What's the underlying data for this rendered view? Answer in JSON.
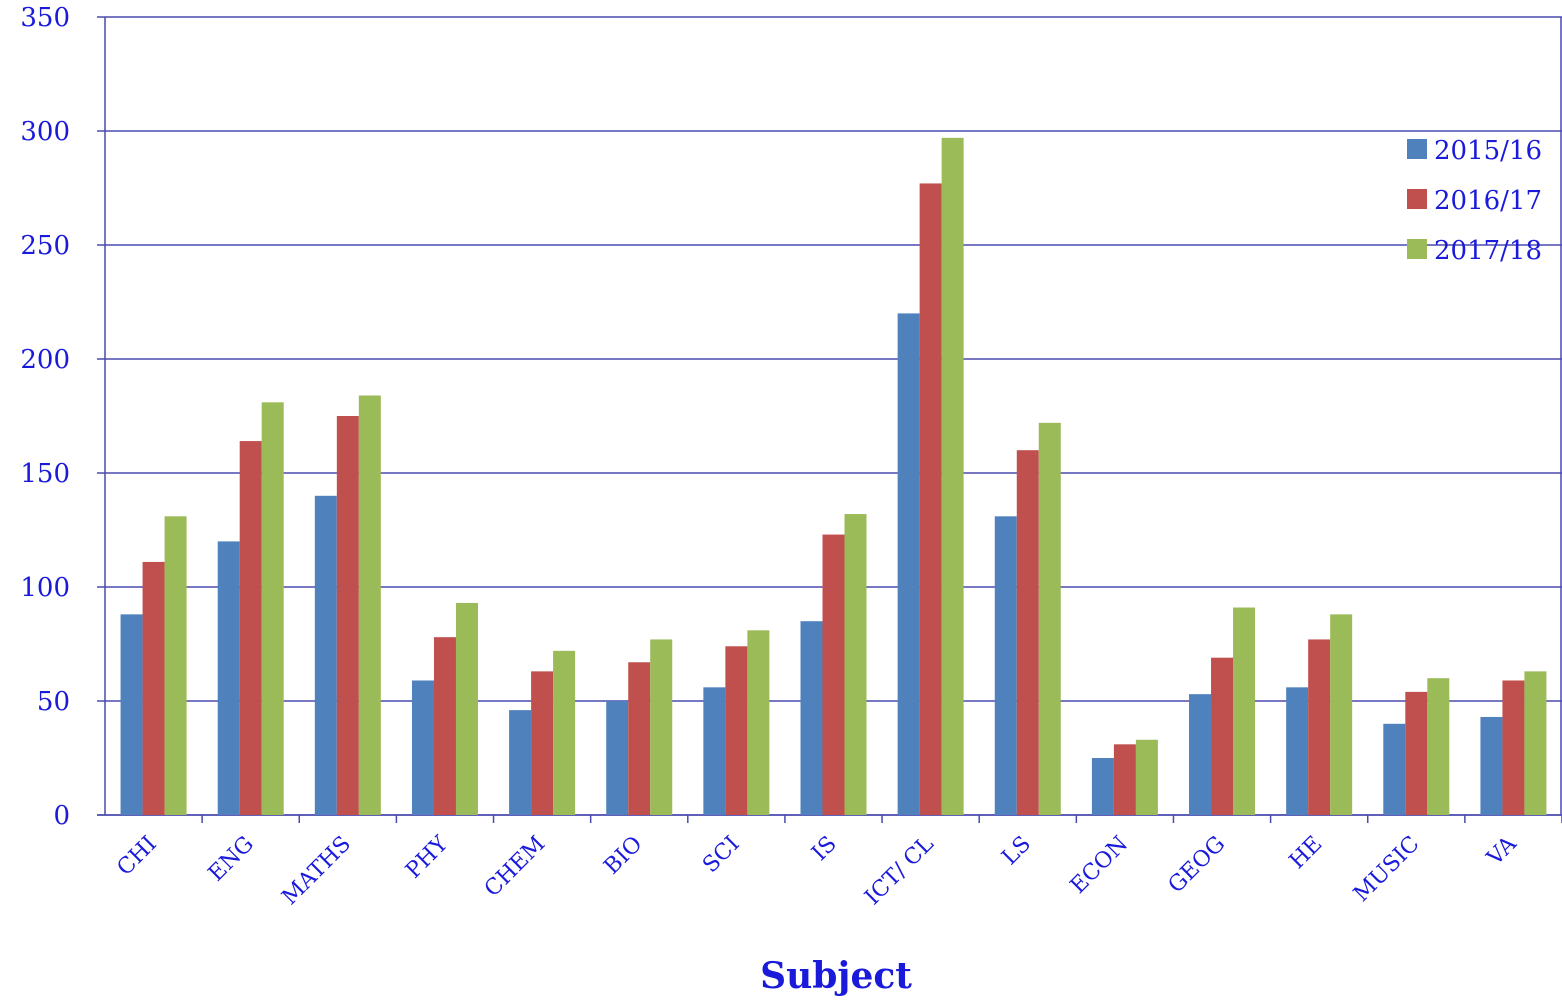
{
  "chart_data": {
    "type": "bar",
    "xlabel": "Subject",
    "ylabel": "",
    "ylim": [
      0,
      350
    ],
    "yticks": [
      0,
      50,
      100,
      150,
      200,
      250,
      300,
      350
    ],
    "grid": true,
    "legend_position": "top-right",
    "categories": [
      "CHI",
      "ENG",
      "MATHS",
      "PHY",
      "CHEM",
      "BIO",
      "SCI",
      "IS",
      "ICT/ CL",
      "LS",
      "ECON",
      "GEOG",
      "HE",
      "MUSIC",
      "VA"
    ],
    "series": [
      {
        "name": "2015/16",
        "color": "#4f81bd",
        "values": [
          88,
          120,
          140,
          59,
          46,
          50,
          56,
          85,
          220,
          131,
          25,
          53,
          56,
          40,
          43
        ]
      },
      {
        "name": "2016/17",
        "color": "#c0504d",
        "values": [
          111,
          164,
          175,
          78,
          63,
          67,
          74,
          123,
          277,
          160,
          31,
          69,
          77,
          54,
          59
        ]
      },
      {
        "name": "2017/18",
        "color": "#9bbb59",
        "values": [
          131,
          181,
          184,
          93,
          72,
          77,
          81,
          132,
          297,
          172,
          33,
          91,
          88,
          60,
          63
        ]
      }
    ],
    "colors": {
      "text": "#1a1adb",
      "grid": "#4a4ab0"
    }
  }
}
